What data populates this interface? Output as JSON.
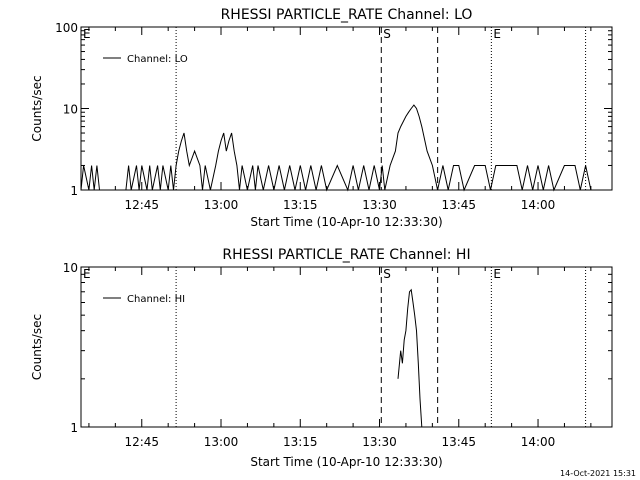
{
  "footer": {
    "timestamp": "14-Oct-2021 15:31"
  },
  "chart_data": [
    {
      "type": "line",
      "title": "RHESSI PARTICLE_RATE Channel: LO",
      "xlabel": "Start Time (10-Apr-10 12:33:30)",
      "ylabel": "Counts/sec",
      "yscale": "log",
      "ylim": [
        1,
        100
      ],
      "xlim": [
        "12:33:30",
        "14:14:00"
      ],
      "xticks": [
        "12:45",
        "13:00",
        "13:15",
        "13:30",
        "13:45",
        "14:00"
      ],
      "yticks": [
        "1",
        "10",
        "100"
      ],
      "legend": "top-left",
      "markers": [
        {
          "label": "E",
          "time": "12:33:30",
          "style": "dotted"
        },
        {
          "label": "",
          "time": "12:51:30",
          "style": "dotted"
        },
        {
          "label": "S",
          "time": "13:30:20",
          "style": "dashed"
        },
        {
          "label": "",
          "time": "13:41:00",
          "style": "dashed"
        },
        {
          "label": "E",
          "time": "13:51:10",
          "style": "dotted"
        },
        {
          "label": "",
          "time": "14:09:00",
          "style": "dotted"
        }
      ],
      "series": [
        {
          "name": "Channel: LO",
          "x": [
            "12:33:30",
            "12:34:00",
            "12:35:00",
            "12:35:30",
            "12:36:00",
            "12:36:30",
            "12:37:00",
            "12:42:00",
            "12:42:30",
            "12:43:00",
            "12:44:00",
            "12:44:30",
            "12:45:00",
            "12:46:00",
            "12:46:30",
            "12:47:00",
            "12:48:00",
            "12:48:30",
            "12:49:00",
            "12:50:00",
            "12:50:30",
            "12:51:00",
            "12:51:30",
            "12:52:00",
            "12:52:30",
            "12:53:00",
            "12:53:30",
            "12:54:00",
            "12:55:00",
            "12:56:00",
            "12:56:30",
            "12:57:00",
            "12:58:00",
            "12:59:00",
            "12:59:30",
            "13:00:00",
            "13:00:30",
            "13:01:00",
            "13:01:30",
            "13:02:00",
            "13:02:30",
            "13:03:00",
            "13:03:30",
            "13:04:00",
            "13:05:00",
            "13:06:00",
            "13:06:30",
            "13:07:00",
            "13:08:00",
            "13:09:00",
            "13:10:00",
            "13:11:00",
            "13:12:00",
            "13:13:00",
            "13:14:00",
            "13:15:00",
            "13:16:00",
            "13:17:00",
            "13:18:00",
            "13:19:00",
            "13:20:00",
            "13:22:00",
            "13:24:00",
            "13:25:00",
            "13:26:00",
            "13:27:00",
            "13:28:00",
            "13:29:00",
            "13:30:00",
            "13:30:30",
            "13:31:00",
            "13:32:00",
            "13:33:00",
            "13:33:30",
            "13:34:00",
            "13:35:00",
            "13:35:30",
            "13:36:00",
            "13:36:30",
            "13:37:00",
            "13:37:30",
            "13:38:00",
            "13:39:00",
            "13:40:00",
            "13:41:00",
            "13:42:00",
            "13:43:00",
            "13:44:00",
            "13:45:00",
            "13:46:00",
            "13:48:00",
            "13:50:00",
            "13:51:00",
            "13:52:00",
            "13:53:00",
            "13:55:00",
            "13:56:00",
            "13:57:00",
            "13:58:00",
            "13:59:00",
            "14:00:00",
            "14:01:00",
            "14:02:00",
            "14:03:00",
            "14:05:00",
            "14:07:00",
            "14:08:00",
            "14:09:00",
            "14:10:00"
          ],
          "y": [
            1,
            2,
            1,
            2,
            1,
            2,
            1,
            1,
            2,
            1,
            2,
            1,
            2,
            1,
            2,
            1,
            2,
            1,
            2,
            1,
            2,
            1,
            2,
            3,
            4,
            5,
            3,
            2,
            3,
            2,
            1,
            2,
            1,
            2,
            3,
            4,
            5,
            3,
            4,
            5,
            3,
            2,
            1,
            2,
            1,
            2,
            1,
            2,
            1,
            2,
            1,
            2,
            1,
            2,
            1,
            2,
            1,
            2,
            1,
            2,
            1,
            2,
            1,
            2,
            1,
            2,
            1,
            2,
            1,
            2,
            1,
            2,
            3,
            5,
            6,
            8,
            9,
            10,
            11,
            10,
            8,
            6,
            3,
            2,
            1,
            2,
            1,
            2,
            2,
            1,
            2,
            2,
            1,
            2,
            2,
            2,
            2,
            1,
            2,
            1,
            2,
            1,
            2,
            1,
            2,
            2,
            1,
            2,
            1
          ]
        }
      ]
    },
    {
      "type": "line",
      "title": "RHESSI PARTICLE_RATE Channel: HI",
      "xlabel": "Start Time (10-Apr-10 12:33:30)",
      "ylabel": "Counts/sec",
      "yscale": "log",
      "ylim": [
        1,
        10
      ],
      "xlim": [
        "12:33:30",
        "14:14:00"
      ],
      "xticks": [
        "12:45",
        "13:00",
        "13:15",
        "13:30",
        "13:45",
        "14:00"
      ],
      "yticks": [
        "1",
        "10"
      ],
      "legend": "top-left",
      "markers": [
        {
          "label": "E",
          "time": "12:33:30",
          "style": "dotted"
        },
        {
          "label": "",
          "time": "12:51:30",
          "style": "dotted"
        },
        {
          "label": "S",
          "time": "13:30:20",
          "style": "dashed"
        },
        {
          "label": "",
          "time": "13:41:00",
          "style": "dashed"
        },
        {
          "label": "E",
          "time": "13:51:10",
          "style": "dotted"
        },
        {
          "label": "",
          "time": "14:09:00",
          "style": "dotted"
        }
      ],
      "series": [
        {
          "name": "Channel: HI",
          "x": [
            "13:33:30",
            "13:34:00",
            "13:34:20",
            "13:34:40",
            "13:35:00",
            "13:35:20",
            "13:35:40",
            "13:36:00",
            "13:36:20",
            "13:36:40",
            "13:37:00",
            "13:37:20",
            "13:37:40",
            "13:38:00"
          ],
          "y": [
            2.0,
            3.0,
            2.5,
            3.5,
            4.0,
            5.5,
            7.0,
            7.2,
            6.0,
            5.0,
            4.0,
            2.5,
            1.5,
            1.0
          ]
        }
      ]
    }
  ]
}
